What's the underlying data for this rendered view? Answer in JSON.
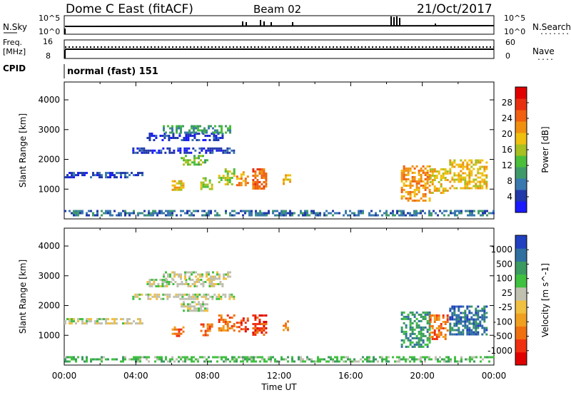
{
  "header": {
    "title": "Dome C East (fitACF)",
    "beam": "Beam 02",
    "date": "21/Oct/2017"
  },
  "panels": {
    "nsky": {
      "label": "N.Sky",
      "ticks_left": [
        "10^5",
        "10^0"
      ],
      "ticks_right": [
        "10^5",
        "10^0"
      ],
      "right_label": "N.Search",
      "right_marker": "........"
    },
    "freq": {
      "label_top": "Freq.",
      "label_unit": "[MHz]",
      "ticks_left": [
        "16",
        "8"
      ],
      "ticks_right": [
        "60",
        "0"
      ],
      "right_label": "Nave",
      "right_marker": "...."
    },
    "cpid": {
      "label": "CPID",
      "value": "normal (fast) 151"
    }
  },
  "chart_data": [
    {
      "type": "heatmap",
      "name": "power-panel",
      "ylabel": "Slant Range [km]",
      "ylim": [
        0,
        4600
      ],
      "yticks": [
        1000,
        2000,
        3000,
        4000
      ],
      "xlim": [
        0,
        24
      ],
      "colorbar": {
        "label": "Power [dB]",
        "ticks": [
          "4",
          "8",
          "12",
          "16",
          "20",
          "24",
          "28"
        ],
        "colors": [
          "#1a1aff",
          "#2038a8",
          "#3a78b0",
          "#3f9a6a",
          "#4bbf3a",
          "#a8c020",
          "#f0c010",
          "#f09010",
          "#f06010",
          "#e83010",
          "#e00000"
        ]
      },
      "regions": [
        {
          "x0": 0.0,
          "x1": 4.4,
          "y0": 1420,
          "y1": 1580,
          "level": 1
        },
        {
          "x0": 3.8,
          "x1": 9.5,
          "y0": 2200,
          "y1": 2400,
          "level": 1
        },
        {
          "x0": 4.6,
          "x1": 8.8,
          "y0": 2650,
          "y1": 2900,
          "level": 1
        },
        {
          "x0": 5.5,
          "x1": 9.3,
          "y0": 2900,
          "y1": 3150,
          "level": 3
        },
        {
          "x0": 6.5,
          "x1": 8.0,
          "y0": 1800,
          "y1": 2150,
          "level": 4
        },
        {
          "x0": 6.0,
          "x1": 6.7,
          "y0": 1000,
          "y1": 1300,
          "level": 6
        },
        {
          "x0": 7.6,
          "x1": 8.2,
          "y0": 1000,
          "y1": 1400,
          "level": 5
        },
        {
          "x0": 8.6,
          "x1": 9.5,
          "y0": 1150,
          "y1": 1700,
          "level": 5
        },
        {
          "x0": 9.6,
          "x1": 10.3,
          "y0": 1100,
          "y1": 1600,
          "level": 7
        },
        {
          "x0": 10.5,
          "x1": 11.3,
          "y0": 1000,
          "y1": 1700,
          "level": 8
        },
        {
          "x0": 12.2,
          "x1": 12.6,
          "y0": 1150,
          "y1": 1500,
          "level": 6
        },
        {
          "x0": 18.8,
          "x1": 20.4,
          "y0": 600,
          "y1": 1800,
          "level": 7
        },
        {
          "x0": 20.4,
          "x1": 21.4,
          "y0": 900,
          "y1": 1700,
          "level": 6
        },
        {
          "x0": 21.5,
          "x1": 23.6,
          "y0": 1000,
          "y1": 2000,
          "level": 6
        },
        {
          "x0": 0.0,
          "x1": 24.0,
          "y0": 150,
          "y1": 300,
          "level": 2
        }
      ]
    },
    {
      "type": "heatmap",
      "name": "velocity-panel",
      "ylabel": "Slant Range [km]",
      "ylim": [
        0,
        4600
      ],
      "yticks": [
        1000,
        2000,
        3000,
        4000
      ],
      "xlim": [
        0,
        24
      ],
      "xlabel": "Time UT",
      "xticks": [
        "00:00",
        "04:00",
        "08:00",
        "12:00",
        "16:00",
        "20:00",
        "00:00"
      ],
      "colorbar": {
        "label": "Velocity [m s^-1]",
        "ticks": [
          "-1000",
          "-500",
          "-100",
          "-25",
          "25",
          "100",
          "500",
          "1000"
        ],
        "colors": [
          "#e00000",
          "#f03010",
          "#f07010",
          "#f0a020",
          "#f0c040",
          "#c0c0b0",
          "#40c040",
          "#3a9a60",
          "#3070a0",
          "#2040c0"
        ]
      },
      "regions": [
        {
          "x0": 0.0,
          "x1": 4.4,
          "y0": 1420,
          "y1": 1580,
          "level": 5
        },
        {
          "x0": 3.8,
          "x1": 9.5,
          "y0": 2200,
          "y1": 2400,
          "level": 5
        },
        {
          "x0": 4.6,
          "x1": 8.8,
          "y0": 2650,
          "y1": 2900,
          "level": 5
        },
        {
          "x0": 5.5,
          "x1": 9.3,
          "y0": 2900,
          "y1": 3150,
          "level": 5
        },
        {
          "x0": 6.5,
          "x1": 8.0,
          "y0": 1800,
          "y1": 2150,
          "level": 5
        },
        {
          "x0": 6.0,
          "x1": 6.7,
          "y0": 1000,
          "y1": 1300,
          "level": 2
        },
        {
          "x0": 7.6,
          "x1": 8.2,
          "y0": 1000,
          "y1": 1400,
          "level": 2
        },
        {
          "x0": 8.6,
          "x1": 9.5,
          "y0": 1150,
          "y1": 1700,
          "level": 2
        },
        {
          "x0": 9.6,
          "x1": 10.3,
          "y0": 1100,
          "y1": 1600,
          "level": 1
        },
        {
          "x0": 10.5,
          "x1": 11.3,
          "y0": 1000,
          "y1": 1700,
          "level": 1
        },
        {
          "x0": 12.2,
          "x1": 12.6,
          "y0": 1150,
          "y1": 1500,
          "level": 2
        },
        {
          "x0": 18.8,
          "x1": 20.4,
          "y0": 600,
          "y1": 1800,
          "level": 7
        },
        {
          "x0": 20.4,
          "x1": 21.4,
          "y0": 900,
          "y1": 1700,
          "level": 2
        },
        {
          "x0": 21.5,
          "x1": 23.6,
          "y0": 1000,
          "y1": 2000,
          "level": 8
        },
        {
          "x0": 0.0,
          "x1": 24.0,
          "y0": 150,
          "y1": 300,
          "level": 6
        }
      ]
    }
  ]
}
